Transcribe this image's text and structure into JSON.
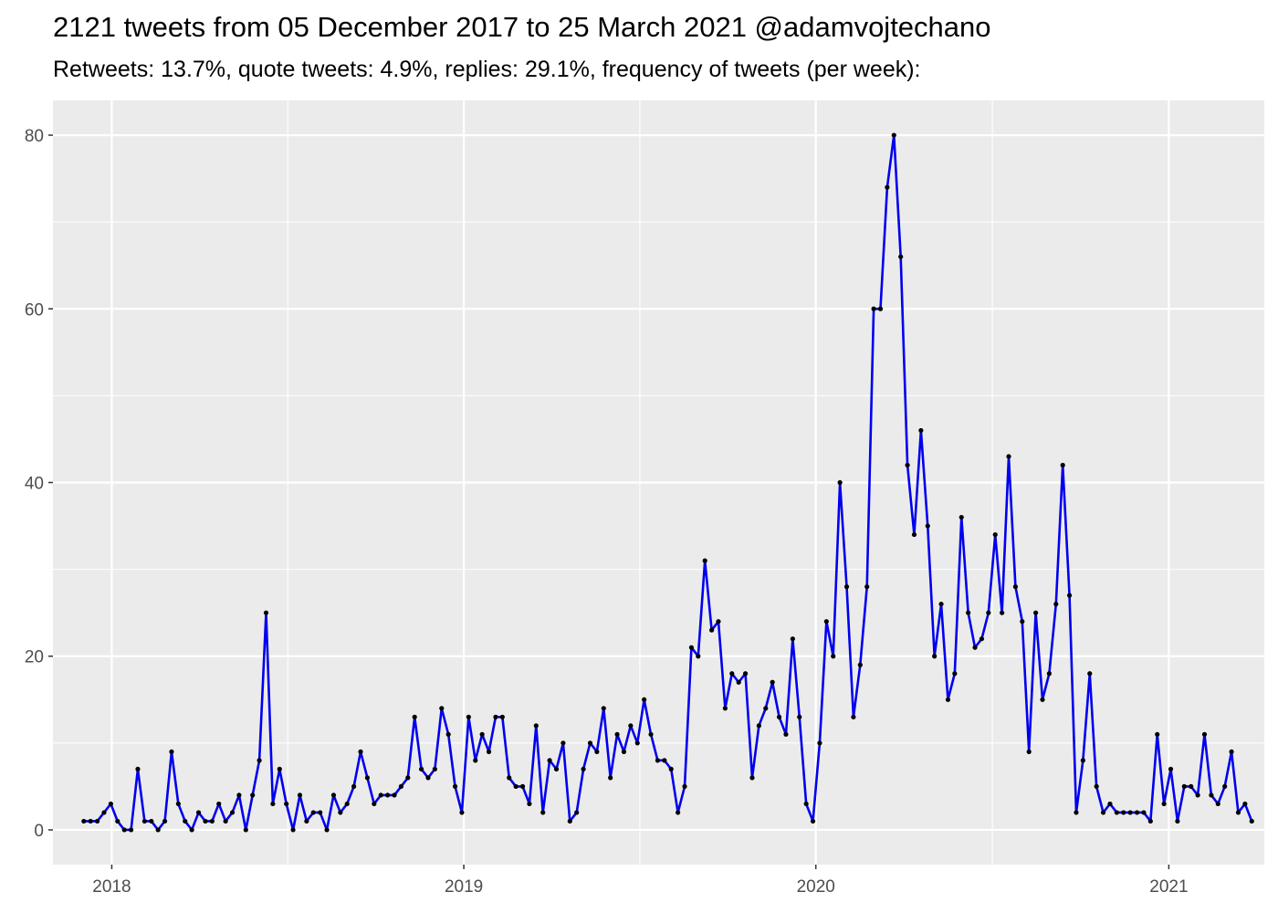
{
  "chart_data": {
    "type": "line",
    "title": "2121 tweets from 05 December 2017 to 25 March 2021 @adamvojtechano",
    "subtitle": "Retweets: 13.7%, quote tweets: 4.9%, replies: 29.1%, frequency of tweets (per week):",
    "xlabel": "",
    "ylabel": "",
    "x_start": "2017-12-03",
    "x_interval_days": 7,
    "xlim": [
      "2017-11-01",
      "2021-04-10"
    ],
    "ylim": [
      -4,
      84
    ],
    "x_ticks": [
      {
        "date": "2018-01-01",
        "label": "2018"
      },
      {
        "date": "2019-01-01",
        "label": "2019"
      },
      {
        "date": "2020-01-01",
        "label": "2020"
      },
      {
        "date": "2021-01-01",
        "label": "2021"
      }
    ],
    "y_ticks": [
      0,
      20,
      40,
      60,
      80
    ],
    "grid": true,
    "line_color": "#0000ee",
    "point_color": "#000000",
    "panel_background": "#ebebeb",
    "series": [
      {
        "values": [
          1,
          1,
          1,
          2,
          3,
          1,
          0,
          0,
          7,
          1,
          1,
          0,
          1,
          9,
          3,
          1,
          0,
          2,
          1,
          1,
          3,
          1,
          2,
          4,
          0,
          4,
          8,
          25,
          3,
          7,
          3,
          0,
          4,
          1,
          2,
          2,
          0,
          4,
          2,
          3,
          5,
          9,
          6,
          3,
          4,
          4,
          4,
          5,
          6,
          13,
          7,
          6,
          7,
          14,
          11,
          5,
          2,
          13,
          8,
          11,
          9,
          13,
          13,
          6,
          5,
          5,
          3,
          12,
          2,
          8,
          7,
          10,
          1,
          2,
          7,
          10,
          9,
          14,
          6,
          11,
          9,
          12,
          10,
          15,
          11,
          8,
          8,
          7,
          2,
          5,
          21,
          20,
          31,
          23,
          24,
          14,
          18,
          17,
          18,
          6,
          12,
          14,
          17,
          13,
          11,
          22,
          13,
          3,
          1,
          10,
          24,
          20,
          40,
          28,
          13,
          19,
          28,
          60,
          60,
          74,
          80,
          66,
          42,
          34,
          46,
          35,
          20,
          26,
          15,
          18,
          36,
          25,
          21,
          22,
          25,
          34,
          25,
          43,
          28,
          24,
          9,
          25,
          15,
          18,
          26,
          42,
          27,
          2,
          8,
          18,
          5,
          2,
          3,
          2,
          2,
          2,
          2,
          2,
          1,
          11,
          3,
          7,
          1,
          5,
          5,
          4,
          11,
          4,
          3,
          5,
          9,
          2,
          3,
          1
        ]
      }
    ]
  }
}
